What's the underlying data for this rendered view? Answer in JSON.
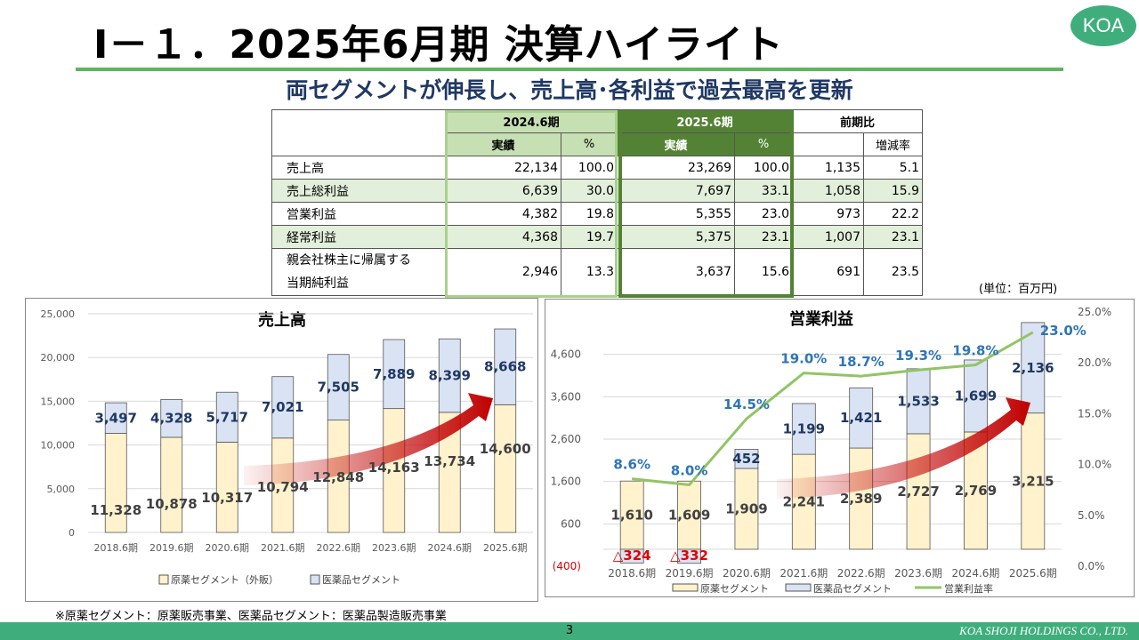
{
  "title": "Ⅰ－１．2025年6月期 決算ハイライト",
  "logo": "KOA",
  "subtitle": "両セグメントが伸長し、売上高･各利益で過去最高を更新",
  "table": {
    "periods": [
      "2024.6期",
      "2025.6期",
      "前期比"
    ],
    "subheaders": [
      "実績",
      "%",
      "実績",
      "%",
      "増減率"
    ],
    "rows": [
      {
        "label": "売上高",
        "v24": "22,134",
        "p24": "100.0",
        "v25": "23,269",
        "p25": "100.0",
        "diff": "1,135",
        "rate": "5.1"
      },
      {
        "label": "売上総利益",
        "v24": "6,639",
        "p24": "30.0",
        "v25": "7,697",
        "p25": "33.1",
        "diff": "1,058",
        "rate": "15.9"
      },
      {
        "label": "営業利益",
        "v24": "4,382",
        "p24": "19.8",
        "v25": "5,355",
        "p25": "23.0",
        "diff": "973",
        "rate": "22.2"
      },
      {
        "label": "経常利益",
        "v24": "4,368",
        "p24": "19.7",
        "v25": "5,375",
        "p25": "23.1",
        "diff": "1,007",
        "rate": "23.1"
      },
      {
        "label": "親会社株主に帰属する",
        "label2": "当期純利益",
        "v24": "2,946",
        "p24": "13.3",
        "v25": "3,637",
        "p25": "15.6",
        "diff": "691",
        "rate": "23.5"
      }
    ]
  },
  "unit": "(単位：百万円)",
  "colors": {
    "segment_a": "#fff2cc",
    "segment_b": "#dae3f3",
    "line": "#92c465",
    "pct_label": "#2e75b6",
    "b_label": "#1f3864",
    "neg_label": "#e00000",
    "arrow": "#c00000"
  },
  "chart_data": [
    {
      "type": "bar",
      "stacked": true,
      "title": "売上高",
      "categories": [
        "2018.6期",
        "2019.6期",
        "2020.6期",
        "2021.6期",
        "2022.6期",
        "2023.6期",
        "2024.6期",
        "2025.6期"
      ],
      "series": [
        {
          "name": "原薬セグメント（外販）",
          "values": [
            11328,
            10878,
            10317,
            10794,
            12848,
            14163,
            13734,
            14600
          ]
        },
        {
          "name": "医薬品セグメント",
          "values": [
            3497,
            4328,
            5717,
            7021,
            7505,
            7889,
            8399,
            8668
          ]
        }
      ],
      "labels_a": [
        "11,328",
        "10,878",
        "10,317",
        "10,794",
        "12,848",
        "14,163",
        "13,734",
        "14,600"
      ],
      "labels_b": [
        "3,497",
        "4,328",
        "5,717",
        "7,021",
        "7,505",
        "7,889",
        "8,399",
        "8,668"
      ],
      "ylim": [
        0,
        25000
      ],
      "yticks": [
        "0",
        "5,000",
        "10,000",
        "15,000",
        "20,000",
        "25,000"
      ],
      "grid": true,
      "legend": "bottom"
    },
    {
      "type": "bar+line",
      "stacked": true,
      "title": "営業利益",
      "categories": [
        "2018.6期",
        "2019.6期",
        "2020.6期",
        "2021.6期",
        "2022.6期",
        "2023.6期",
        "2024.6期",
        "2025.6期"
      ],
      "series": [
        {
          "name": "原薬セグメント",
          "values": [
            1610,
            1609,
            1909,
            2241,
            2389,
            2727,
            2769,
            3215
          ]
        },
        {
          "name": "医薬品セグメント",
          "values": [
            -324,
            -332,
            452,
            1199,
            1421,
            1533,
            1699,
            2136
          ]
        },
        {
          "name": "営業利益率",
          "axis": "right",
          "values": [
            8.6,
            8.0,
            14.5,
            19.0,
            18.7,
            19.3,
            19.8,
            23.0
          ]
        }
      ],
      "labels_a": [
        "1,610",
        "1,609",
        "1,909",
        "2,241",
        "2,389",
        "2,727",
        "2,769",
        "3,215"
      ],
      "labels_b": [
        "△324",
        "△332",
        "452",
        "1,199",
        "1,421",
        "1,533",
        "1,699",
        "2,136"
      ],
      "labels_line": [
        "8.6%",
        "8.0%",
        "14.5%",
        "19.0%",
        "18.7%",
        "19.3%",
        "19.8%",
        "23.0%"
      ],
      "ylim": [
        -400,
        5600
      ],
      "yticks": [
        {
          "v": -400,
          "t": "(400)"
        },
        {
          "v": 600,
          "t": "600"
        },
        {
          "v": 1600,
          "t": "1,600"
        },
        {
          "v": 2600,
          "t": "2,600"
        },
        {
          "v": 3600,
          "t": "3,600"
        },
        {
          "v": 4600,
          "t": "4,600"
        }
      ],
      "y2lim": [
        0,
        25
      ],
      "y2ticks": [
        "0.0%",
        "5.0%",
        "10.0%",
        "15.0%",
        "20.0%",
        "25.0%"
      ],
      "grid": true,
      "legend": "bottom"
    }
  ],
  "note": "※原薬セグメント：原薬販売事業、医薬品セグメント：医薬品製造販売事業",
  "page_number": "3",
  "company": "KOA SHOJI HOLDINGS CO., LTD."
}
